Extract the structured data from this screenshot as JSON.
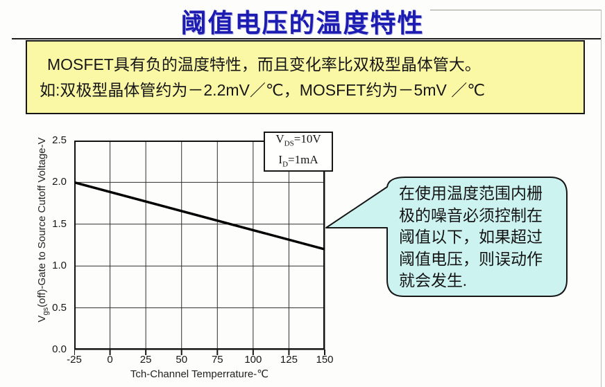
{
  "header": {
    "title": "阈值电压的温度特性"
  },
  "note": {
    "lines": [
      "MOSFET具有负的温度特性，而且变化率比双极型晶体管大。",
      "如:双极型晶体管约为－2.2mV／℃，MOSFET约为－5mV ／℃"
    ]
  },
  "conditions": {
    "v_symbol": "V",
    "v_sub": "DS",
    "v_rest": "=10V",
    "i_symbol": "I",
    "i_sub": "D",
    "i_rest": "=1mA"
  },
  "callout": {
    "lines": [
      "在使用温度范围内栅",
      "极的噪音必须控制在",
      "阈值以下，如果超过",
      "阈值电压，则误动作",
      "就会发生."
    ]
  },
  "chart_data": {
    "type": "line",
    "title": "",
    "xlabel": "Tch-Channel Temperrature-℃",
    "ylabel_prefix": "V",
    "ylabel_sub": "gs",
    "ylabel_rest": "(off)-Gate to Source Cutoff Voltage-V",
    "xlim": [
      -25,
      150
    ],
    "ylim": [
      0,
      2.5
    ],
    "x_ticks": [
      -25,
      0,
      25,
      50,
      75,
      100,
      125,
      150
    ],
    "y_ticks": [
      0.0,
      0.5,
      1.0,
      1.5,
      2.0,
      2.5
    ],
    "grid": true,
    "legend": "none",
    "series": [
      {
        "name": "Vgs(off) vs Tch",
        "points": [
          [
            -25,
            2.0
          ],
          [
            150,
            1.2
          ]
        ]
      }
    ],
    "slope_note": "about -5 mV per degree C",
    "annotation_conditions": [
      "VDS=10V",
      "ID=1mA"
    ]
  },
  "colors": {
    "title_blue": "#1c1cb2",
    "note_yellow": "#fbf8a5",
    "callout_cyan": "#cdf3f1",
    "line_black": "#000000",
    "grid_gray": "#2e2e2e"
  }
}
